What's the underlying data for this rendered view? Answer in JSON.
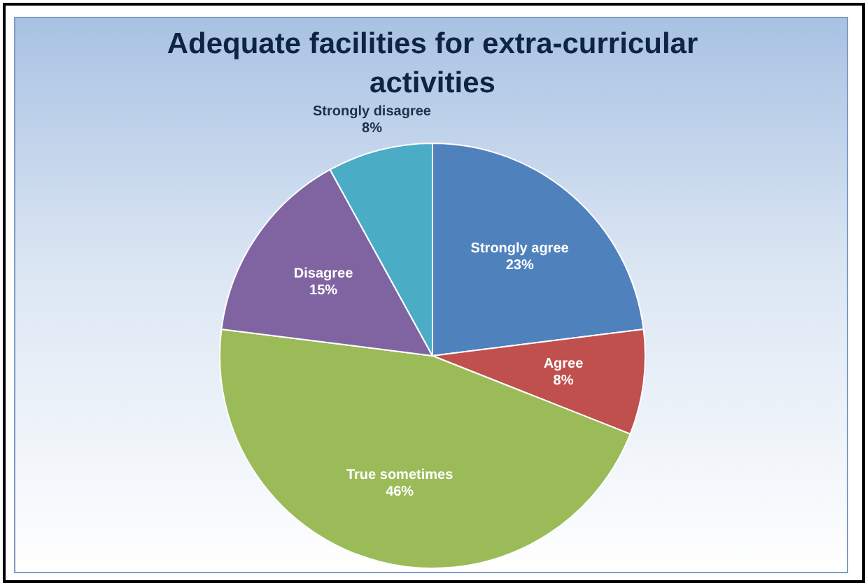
{
  "chart_data": {
    "type": "pie",
    "title": "Adequate facilities for extra-curricular activities",
    "categories": [
      "Strongly agree",
      "Agree",
      "True sometimes",
      "Disagree",
      "Strongly disagree"
    ],
    "values": [
      23,
      8,
      46,
      15,
      8
    ],
    "value_labels": [
      "23%",
      "8%",
      "46%",
      "15%",
      "8%"
    ],
    "colors": [
      "#4f81bd",
      "#c0504d",
      "#9bbb59",
      "#8064a2",
      "#4bacc6"
    ],
    "legend": false
  }
}
